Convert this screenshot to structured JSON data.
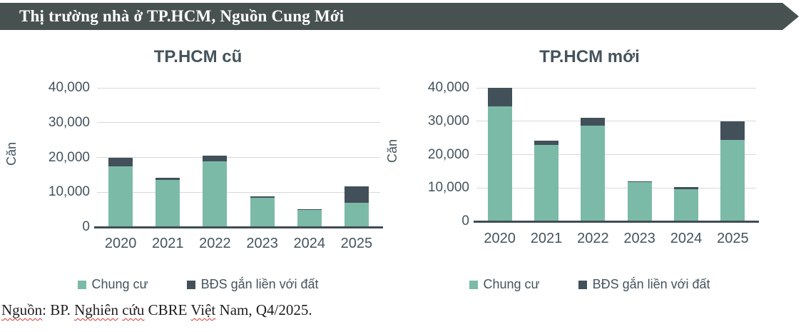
{
  "header": {
    "title": "Thị trường nhà ở TP.HCM, Nguồn Cung Mới"
  },
  "colors": {
    "banner": "#475250",
    "chung_cu": "#7cbaa8",
    "bds": "#42505a",
    "axis_text": "#45535c",
    "gridline": "#d9d9d9",
    "baseline": "#3f4d53",
    "spellcheck_red": "#d13438"
  },
  "footer": {
    "segments": [
      {
        "text": "Nguồn",
        "misspelled": true
      },
      {
        "text": ": BP. ",
        "misspelled": false
      },
      {
        "text": "Nghiên",
        "misspelled": true
      },
      {
        "text": " ",
        "misspelled": false
      },
      {
        "text": "cứu",
        "misspelled": true
      },
      {
        "text": " CBRE ",
        "misspelled": false
      },
      {
        "text": "Việt",
        "misspelled": true
      },
      {
        "text": " Nam, Q4/2025.",
        "misspelled": false
      }
    ]
  },
  "chart_data": [
    {
      "type": "bar",
      "stacked": true,
      "title": "TP.HCM cũ",
      "ylabel": "Căn",
      "xlabel": "",
      "ylim": [
        0,
        40000
      ],
      "yticks": [
        0,
        10000,
        20000,
        30000,
        40000
      ],
      "ytick_labels": [
        "0",
        "10,000",
        "20,000",
        "30,000",
        "40,000"
      ],
      "grid": true,
      "legend_position": "bottom",
      "categories": [
        "2020",
        "2021",
        "2022",
        "2023",
        "2024",
        "2025"
      ],
      "series": [
        {
          "name": "Chung cư",
          "color_key": "chung_cu",
          "values": [
            17400,
            13600,
            18900,
            8500,
            4900,
            6900
          ]
        },
        {
          "name": "BĐS gắn liền với đất",
          "color_key": "bds",
          "values": [
            2600,
            600,
            1600,
            300,
            300,
            4900
          ]
        }
      ],
      "totals": [
        20000,
        14200,
        20500,
        8800,
        5200,
        11800
      ]
    },
    {
      "type": "bar",
      "stacked": true,
      "title": "TP.HCM mới",
      "ylabel": "Căn",
      "xlabel": "",
      "ylim": [
        0,
        40000
      ],
      "yticks": [
        0,
        10000,
        20000,
        30000,
        40000
      ],
      "ytick_labels": [
        "0",
        "10,000",
        "20,000",
        "30,000",
        "40,000"
      ],
      "grid": true,
      "legend_position": "bottom",
      "categories": [
        "2020",
        "2021",
        "2022",
        "2023",
        "2024",
        "2025"
      ],
      "series": [
        {
          "name": "Chung cư",
          "color_key": "chung_cu",
          "values": [
            34500,
            22800,
            28600,
            11800,
            9600,
            24400
          ]
        },
        {
          "name": "BĐS gắn liền với đất",
          "color_key": "bds",
          "values": [
            5500,
            1400,
            2400,
            200,
            700,
            5600
          ]
        }
      ],
      "totals": [
        40000,
        24200,
        31000,
        12000,
        10300,
        30000
      ]
    }
  ]
}
